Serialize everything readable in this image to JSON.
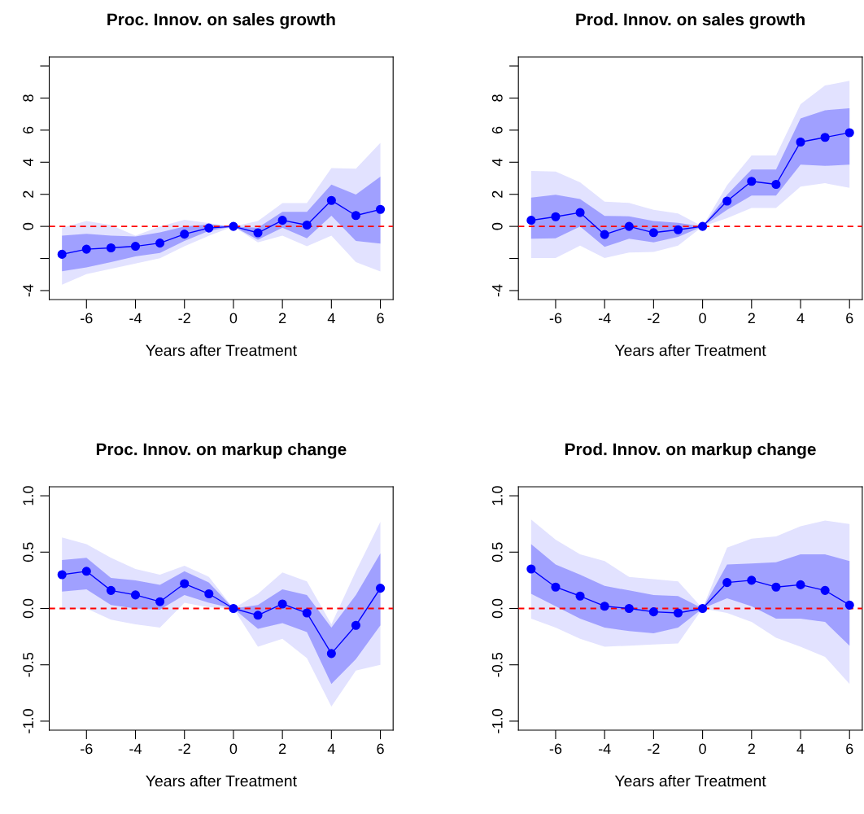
{
  "chart_data": [
    {
      "type": "line",
      "title": "Proc. Innov. on sales growth",
      "xlabel": "Years after Treatment",
      "x": [
        -7,
        -6,
        -5,
        -4,
        -3,
        -2,
        -1,
        0,
        1,
        2,
        3,
        4,
        5,
        6
      ],
      "series": [
        {
          "color": "#e2e2ff",
          "values": [
            null,
            null,
            null,
            null,
            null,
            null,
            null,
            null,
            null,
            null,
            null,
            null,
            null,
            null
          ],
          "lower": [
            -3.64,
            -2.98,
            -2.64,
            -2.31,
            -1.98,
            -1.24,
            -0.58,
            0,
            -0.99,
            -0.58,
            -1.24,
            -0.58,
            -2.23,
            -2.81
          ],
          "upper": [
            -0.08,
            0.33,
            0.08,
            -0.58,
            0,
            0.41,
            0.2,
            0,
            0.33,
            1.45,
            1.45,
            3.64,
            3.6,
            5.21
          ]
        },
        {
          "color": "#a0a0ff",
          "values": [
            null,
            null,
            null,
            null,
            null,
            null,
            null,
            null,
            null,
            null,
            null,
            null,
            null,
            null
          ],
          "lower": [
            -2.8,
            -2.56,
            -2.23,
            -1.87,
            -1.65,
            -0.91,
            -0.28,
            0,
            -0.83,
            -0.08,
            -0.74,
            0.66,
            -0.91,
            -1.07
          ],
          "upper": [
            -0.58,
            -0.46,
            -0.58,
            -0.63,
            -0.38,
            0,
            0.12,
            0,
            -0.08,
            0.91,
            0.91,
            2.61,
            1.98,
            3.1
          ]
        },
        {
          "color": "#0000ff",
          "marker": "circle",
          "values": [
            -1.74,
            -1.42,
            -1.34,
            -1.24,
            -1.04,
            -0.48,
            -0.1,
            0,
            -0.4,
            0.38,
            0.08,
            1.62,
            0.68,
            1.06
          ]
        }
      ],
      "xlim": [
        -7.52,
        6.52
      ],
      "xticks": [
        -6,
        -4,
        -2,
        0,
        2,
        4,
        6
      ],
      "ylim": [
        -4.56,
        10.56
      ],
      "yticks": [
        -4,
        {
          "value": -2,
          "label": null
        },
        0,
        2,
        4,
        6,
        8,
        {
          "value": 10,
          "label": null
        }
      ],
      "ref_lines": [
        {
          "axis": "y",
          "value": 0,
          "color": "#ff0000",
          "line_style": "dashed"
        }
      ]
    },
    {
      "type": "line",
      "title": "Prod. Innov. on sales growth",
      "xlabel": "Years after Treatment",
      "x": [
        -7,
        -6,
        -5,
        -4,
        -3,
        -2,
        -1,
        0,
        1,
        2,
        3,
        4,
        5,
        6
      ],
      "series": [
        {
          "color": "#e2e2ff",
          "values": [
            null,
            null,
            null,
            null,
            null,
            null,
            null,
            null,
            null,
            null,
            null,
            null,
            null,
            null
          ],
          "lower": [
            -1.97,
            -1.97,
            -1.2,
            -1.97,
            -1.63,
            -1.59,
            -1.2,
            0,
            0.51,
            1.15,
            1.15,
            2.48,
            2.69,
            2.4
          ],
          "upper": [
            3.46,
            3.42,
            2.74,
            1.54,
            1.46,
            1.03,
            0.8,
            0,
            2.57,
            4.42,
            4.42,
            7.62,
            8.78,
            9.08
          ]
        },
        {
          "color": "#a0a0ff",
          "values": [
            null,
            null,
            null,
            null,
            null,
            null,
            null,
            null,
            null,
            null,
            null,
            null,
            null,
            null
          ],
          "lower": [
            -0.77,
            -0.74,
            0,
            -1.28,
            -0.77,
            -0.99,
            -0.65,
            0,
            1.03,
            1.92,
            1.92,
            3.85,
            3.77,
            3.85
          ],
          "upper": [
            1.8,
            1.97,
            1.71,
            0.65,
            0.63,
            0.34,
            0.22,
            0,
            1.97,
            3.54,
            3.54,
            6.73,
            7.24,
            7.36
          ]
        },
        {
          "color": "#0000ff",
          "marker": "circle",
          "values": [
            0.38,
            0.6,
            0.86,
            -0.51,
            0,
            -0.39,
            -0.21,
            0,
            1.58,
            2.81,
            2.62,
            5.26,
            5.55,
            5.84
          ]
        }
      ],
      "xlim": [
        -7.52,
        6.52
      ],
      "xticks": [
        -6,
        -4,
        -2,
        0,
        2,
        4,
        6
      ],
      "ylim": [
        -4.56,
        10.56
      ],
      "yticks": [
        -4,
        {
          "value": -2,
          "label": null
        },
        0,
        2,
        4,
        6,
        8,
        {
          "value": 10,
          "label": null
        }
      ],
      "ref_lines": [
        {
          "axis": "y",
          "value": 0,
          "color": "#ff0000",
          "line_style": "dashed"
        }
      ]
    },
    {
      "type": "line",
      "title": "Proc. Innov. on markup change",
      "xlabel": "Years after Treatment",
      "x": [
        -7,
        -6,
        -5,
        -4,
        -3,
        -2,
        -1,
        0,
        1,
        2,
        3,
        4,
        5,
        6
      ],
      "series": [
        {
          "color": "#e2e2ff",
          "values": [
            null,
            null,
            null,
            null,
            null,
            null,
            null,
            null,
            null,
            null,
            null,
            null,
            null,
            null
          ],
          "lower": [
            -0.01,
            0,
            -0.1,
            -0.14,
            -0.17,
            0.05,
            0.01,
            0,
            -0.34,
            -0.27,
            -0.44,
            -0.87,
            -0.55,
            -0.5
          ],
          "upper": [
            0.63,
            0.57,
            0.45,
            0.35,
            0.3,
            0.38,
            0.28,
            0,
            0.13,
            0.32,
            0.24,
            -0.14,
            0.33,
            0.77
          ]
        },
        {
          "color": "#a0a0ff",
          "values": [
            null,
            null,
            null,
            null,
            null,
            null,
            null,
            null,
            null,
            null,
            null,
            null,
            null,
            null
          ],
          "lower": [
            0.15,
            0.17,
            0.03,
            0,
            -0.01,
            0.12,
            0.05,
            0,
            -0.18,
            -0.13,
            -0.21,
            -0.67,
            -0.45,
            -0.15
          ],
          "upper": [
            0.43,
            0.45,
            0.27,
            0.25,
            0.21,
            0.33,
            0.23,
            0,
            0.03,
            0.17,
            0.12,
            -0.17,
            0.12,
            0.49
          ]
        },
        {
          "color": "#0000ff",
          "marker": "circle",
          "values": [
            0.3,
            0.33,
            0.16,
            0.12,
            0.06,
            0.22,
            0.13,
            0,
            -0.06,
            0.04,
            -0.04,
            -0.4,
            -0.15,
            0.18
          ]
        }
      ],
      "xlim": [
        -7.52,
        6.52
      ],
      "xticks": [
        -6,
        -4,
        -2,
        0,
        2,
        4,
        6
      ],
      "ylim": [
        -1.08,
        1.08
      ],
      "yticks": [
        {
          "value": -1,
          "label": "-1.0"
        },
        {
          "value": -0.5,
          "label": "-0.5"
        },
        {
          "value": 0,
          "label": "0.0"
        },
        {
          "value": 0.5,
          "label": "0.5"
        },
        {
          "value": 1,
          "label": "1.0"
        }
      ],
      "ref_lines": [
        {
          "axis": "y",
          "value": 0,
          "color": "#ff0000",
          "line_style": "dashed"
        }
      ]
    },
    {
      "type": "line",
      "title": "Prod. Innov. on markup change",
      "xlabel": "Years after Treatment",
      "x": [
        -7,
        -6,
        -5,
        -4,
        -3,
        -2,
        -1,
        0,
        1,
        2,
        3,
        4,
        5,
        6
      ],
      "series": [
        {
          "color": "#e2e2ff",
          "values": [
            null,
            null,
            null,
            null,
            null,
            null,
            null,
            null,
            null,
            null,
            null,
            null,
            null,
            null
          ],
          "lower": [
            -0.09,
            -0.17,
            -0.27,
            -0.34,
            -0.33,
            -0.32,
            -0.31,
            0,
            -0.04,
            -0.12,
            -0.26,
            -0.34,
            -0.43,
            -0.67
          ],
          "upper": [
            0.79,
            0.61,
            0.48,
            0.42,
            0.28,
            0.26,
            0.24,
            0,
            0.54,
            0.62,
            0.64,
            0.73,
            0.78,
            0.75
          ]
        },
        {
          "color": "#a0a0ff",
          "values": [
            null,
            null,
            null,
            null,
            null,
            null,
            null,
            null,
            null,
            null,
            null,
            null,
            null,
            null
          ],
          "lower": [
            0.13,
            0.02,
            -0.09,
            -0.17,
            -0.2,
            -0.22,
            -0.17,
            0,
            0.09,
            0.02,
            -0.09,
            -0.09,
            -0.12,
            -0.33
          ],
          "upper": [
            0.57,
            0.39,
            0.3,
            0.2,
            0.16,
            0.12,
            0.11,
            0,
            0.39,
            0.4,
            0.41,
            0.48,
            0.48,
            0.42
          ]
        },
        {
          "color": "#0000ff",
          "marker": "circle",
          "values": [
            0.35,
            0.19,
            0.11,
            0.02,
            0,
            -0.03,
            -0.04,
            0,
            0.23,
            0.25,
            0.19,
            0.21,
            0.16,
            0.03
          ]
        }
      ],
      "xlim": [
        -7.52,
        6.52
      ],
      "xticks": [
        -6,
        -4,
        -2,
        0,
        2,
        4,
        6
      ],
      "ylim": [
        -1.08,
        1.08
      ],
      "yticks": [
        {
          "value": -1,
          "label": "-1.0"
        },
        {
          "value": -0.5,
          "label": "-0.5"
        },
        {
          "value": 0,
          "label": "0.0"
        },
        {
          "value": 0.5,
          "label": "0.5"
        },
        {
          "value": 1,
          "label": "1.0"
        }
      ],
      "ref_lines": [
        {
          "axis": "y",
          "value": 0,
          "color": "#ff0000",
          "line_style": "dashed"
        }
      ]
    }
  ]
}
